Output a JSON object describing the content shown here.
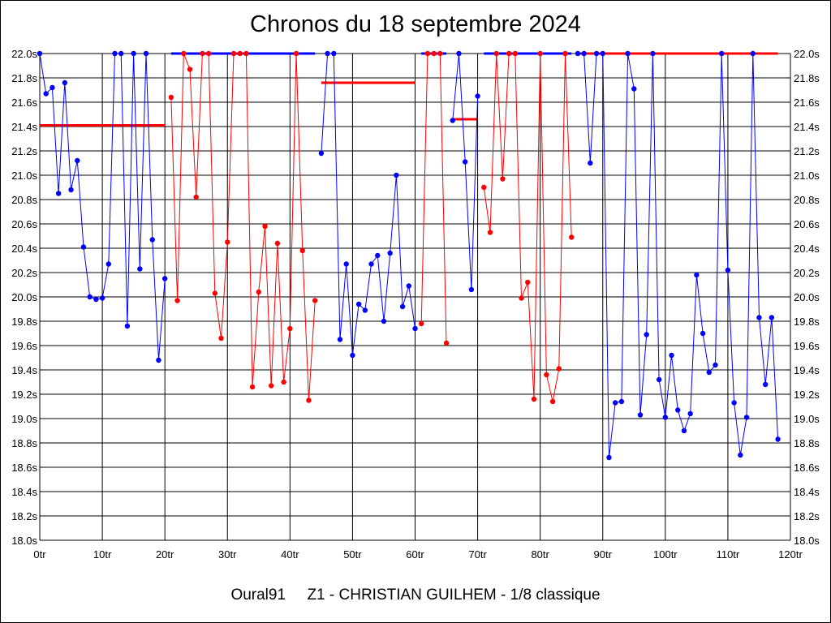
{
  "chart_data": {
    "type": "line",
    "title": "Chronos du 18 septembre 2024",
    "footer": {
      "pilot": "Oural91",
      "subtitle": "Z1 - CHRISTIAN GUILHEM - 1/8 classique"
    },
    "xlabel": "",
    "ylabel": "",
    "xlim": [
      0,
      120
    ],
    "ylim": [
      18.0,
      22.0
    ],
    "grid": true,
    "x_ticks": [
      0,
      10,
      20,
      30,
      40,
      50,
      60,
      70,
      80,
      90,
      100,
      110,
      120
    ],
    "x_tick_labels": [
      "0tr",
      "10tr",
      "20tr",
      "30tr",
      "40tr",
      "50tr",
      "60tr",
      "70tr",
      "80tr",
      "90tr",
      "100tr",
      "110tr",
      "120tr"
    ],
    "y_ticks": [
      18.0,
      18.2,
      18.4,
      18.6,
      18.8,
      19.0,
      19.2,
      19.4,
      19.6,
      19.8,
      20.0,
      20.2,
      20.4,
      20.6,
      20.8,
      21.0,
      21.2,
      21.4,
      21.6,
      21.8,
      22.0
    ],
    "y_tick_labels": [
      "18.0s",
      "18.2s",
      "18.4s",
      "18.6s",
      "18.8s",
      "19.0s",
      "19.2s",
      "19.4s",
      "19.6s",
      "19.8s",
      "20.0s",
      "20.2s",
      "20.4s",
      "20.6s",
      "20.8s",
      "21.0s",
      "21.2s",
      "21.4s",
      "21.6s",
      "21.8s",
      "22.0s"
    ],
    "colors": {
      "blue": "#0000ff",
      "red": "#ff0000",
      "grid": "#000000"
    },
    "series": [
      {
        "color": "blue",
        "points": [
          [
            0,
            22.0
          ],
          [
            1,
            21.67
          ],
          [
            2,
            21.72
          ],
          [
            3,
            20.85
          ],
          [
            4,
            21.76
          ],
          [
            5,
            20.88
          ],
          [
            6,
            21.12
          ],
          [
            7,
            20.41
          ],
          [
            8,
            20.0
          ],
          [
            9,
            19.98
          ],
          [
            10,
            19.99
          ],
          [
            11,
            20.27
          ],
          [
            12,
            22.0
          ],
          [
            13,
            22.0
          ],
          [
            14,
            19.76
          ],
          [
            15,
            22.0
          ],
          [
            16,
            20.23
          ],
          [
            17,
            22.0
          ],
          [
            18,
            20.47
          ],
          [
            19,
            19.48
          ],
          [
            20,
            20.15
          ]
        ]
      },
      {
        "color": "red",
        "points": [
          [
            21,
            21.64
          ],
          [
            22,
            19.97
          ],
          [
            23,
            22.0
          ],
          [
            24,
            21.87
          ],
          [
            25,
            20.82
          ],
          [
            26,
            22.0
          ],
          [
            27,
            22.0
          ],
          [
            28,
            20.03
          ],
          [
            29,
            19.66
          ],
          [
            30,
            20.45
          ],
          [
            31,
            22.0
          ],
          [
            32,
            22.0
          ],
          [
            33,
            22.0
          ],
          [
            34,
            19.26
          ],
          [
            35,
            20.04
          ],
          [
            36,
            20.58
          ],
          [
            37,
            19.27
          ],
          [
            38,
            20.44
          ],
          [
            39,
            19.3
          ],
          [
            40,
            19.74
          ],
          [
            41,
            22.0
          ],
          [
            42,
            20.38
          ],
          [
            43,
            19.15
          ],
          [
            44,
            19.97
          ]
        ]
      },
      {
        "color": "blue",
        "points": [
          [
            45,
            21.18
          ],
          [
            46,
            22.0
          ],
          [
            47,
            22.0
          ],
          [
            48,
            19.65
          ],
          [
            49,
            20.27
          ],
          [
            50,
            19.52
          ],
          [
            51,
            19.94
          ],
          [
            52,
            19.89
          ],
          [
            53,
            20.27
          ],
          [
            54,
            20.34
          ],
          [
            55,
            19.8
          ],
          [
            56,
            20.36
          ],
          [
            57,
            21.0
          ],
          [
            58,
            19.92
          ],
          [
            59,
            20.09
          ],
          [
            60,
            19.74
          ]
        ]
      },
      {
        "color": "red",
        "points": [
          [
            61,
            19.78
          ],
          [
            62,
            22.0
          ],
          [
            63,
            22.0
          ],
          [
            64,
            22.0
          ],
          [
            65,
            19.62
          ]
        ]
      },
      {
        "color": "blue",
        "points": [
          [
            66,
            21.45
          ],
          [
            67,
            22.0
          ],
          [
            68,
            21.11
          ],
          [
            69,
            20.06
          ],
          [
            70,
            21.65
          ]
        ]
      },
      {
        "color": "red",
        "points": [
          [
            71,
            20.9
          ],
          [
            72,
            20.53
          ],
          [
            73,
            22.0
          ],
          [
            74,
            20.97
          ],
          [
            75,
            22.0
          ],
          [
            76,
            22.0
          ],
          [
            77,
            19.99
          ],
          [
            78,
            20.12
          ],
          [
            79,
            19.16
          ],
          [
            80,
            22.0
          ],
          [
            81,
            19.36
          ],
          [
            82,
            19.14
          ],
          [
            83,
            19.41
          ],
          [
            84,
            22.0
          ],
          [
            85,
            20.49
          ]
        ]
      },
      {
        "color": "blue",
        "points": [
          [
            86,
            22.0
          ],
          [
            87,
            22.0
          ],
          [
            88,
            21.1
          ],
          [
            89,
            22.0
          ],
          [
            90,
            22.0
          ],
          [
            91,
            18.68
          ],
          [
            92,
            19.13
          ],
          [
            93,
            19.14
          ],
          [
            94,
            22.0
          ],
          [
            95,
            21.71
          ],
          [
            96,
            19.03
          ],
          [
            97,
            19.69
          ],
          [
            98,
            22.0
          ],
          [
            99,
            19.32
          ],
          [
            100,
            19.01
          ],
          [
            101,
            19.52
          ],
          [
            102,
            19.07
          ],
          [
            103,
            18.9
          ],
          [
            104,
            19.04
          ],
          [
            105,
            20.18
          ],
          [
            106,
            19.7
          ],
          [
            107,
            19.38
          ],
          [
            108,
            19.44
          ],
          [
            109,
            22.0
          ],
          [
            110,
            20.22
          ],
          [
            111,
            19.13
          ],
          [
            112,
            18.7
          ],
          [
            113,
            19.01
          ],
          [
            114,
            22.0
          ],
          [
            115,
            19.83
          ],
          [
            116,
            19.28
          ],
          [
            117,
            19.83
          ],
          [
            118,
            18.83
          ]
        ]
      }
    ],
    "average_lines": [
      {
        "color": "red",
        "x_start": 0,
        "x_end": 20,
        "y": 21.41
      },
      {
        "color": "blue",
        "x_start": 21,
        "x_end": 44,
        "y": 22.0
      },
      {
        "color": "red",
        "x_start": 45,
        "x_end": 60,
        "y": 21.76
      },
      {
        "color": "blue",
        "x_start": 61,
        "x_end": 65,
        "y": 22.0
      },
      {
        "color": "red",
        "x_start": 66,
        "x_end": 70,
        "y": 21.46
      },
      {
        "color": "blue",
        "x_start": 71,
        "x_end": 85,
        "y": 22.0
      },
      {
        "color": "red",
        "x_start": 86,
        "x_end": 118,
        "y": 22.0
      }
    ]
  }
}
